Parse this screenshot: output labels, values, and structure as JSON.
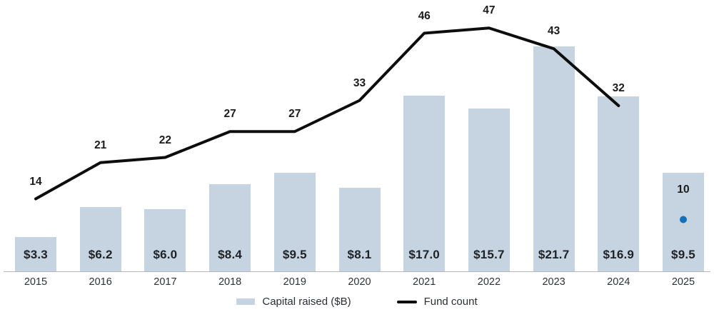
{
  "chart_data": {
    "type": "combo",
    "title": "",
    "categories": [
      "2015",
      "2016",
      "2017",
      "2018",
      "2019",
      "2020",
      "2021",
      "2022",
      "2023",
      "2024",
      "2025"
    ],
    "series": [
      {
        "name": "Capital raised ($B)",
        "type": "bar",
        "color": "#c6d3e0",
        "values": [
          3.3,
          6.2,
          6.0,
          8.4,
          9.5,
          8.1,
          17.0,
          15.7,
          21.7,
          16.9,
          9.5
        ],
        "data_labels": [
          "$3.3",
          "$6.2",
          "$6.0",
          "$8.4",
          "$9.5",
          "$8.1",
          "$17.0",
          "$15.7",
          "$21.7",
          "$16.9",
          "$9.5"
        ]
      },
      {
        "name": "Fund count",
        "type": "line",
        "color": "#0d0d0d",
        "values": [
          14,
          21,
          22,
          27,
          27,
          33,
          46,
          47,
          43,
          32,
          10
        ],
        "data_labels": [
          "14",
          "21",
          "22",
          "27",
          "27",
          "33",
          "46",
          "47",
          "43",
          "32",
          "10"
        ],
        "isolated_last_point": true,
        "dot_color": "#1371b8"
      }
    ],
    "legend": {
      "position": "bottom-center",
      "items": [
        {
          "label": "Capital raised ($B)",
          "swatch": "bar-swatch",
          "color": "#c6d3e0"
        },
        {
          "label": "Fund count",
          "swatch": "line-swatch",
          "color": "#0d0d0d"
        }
      ]
    },
    "axes": {
      "x": {
        "axis_line_color": "#b3b8bd"
      },
      "y_bar": {
        "visible": false,
        "range": [
          0,
          22
        ]
      },
      "y_line": {
        "visible": false,
        "range": [
          0,
          52
        ]
      }
    },
    "grid": false
  }
}
